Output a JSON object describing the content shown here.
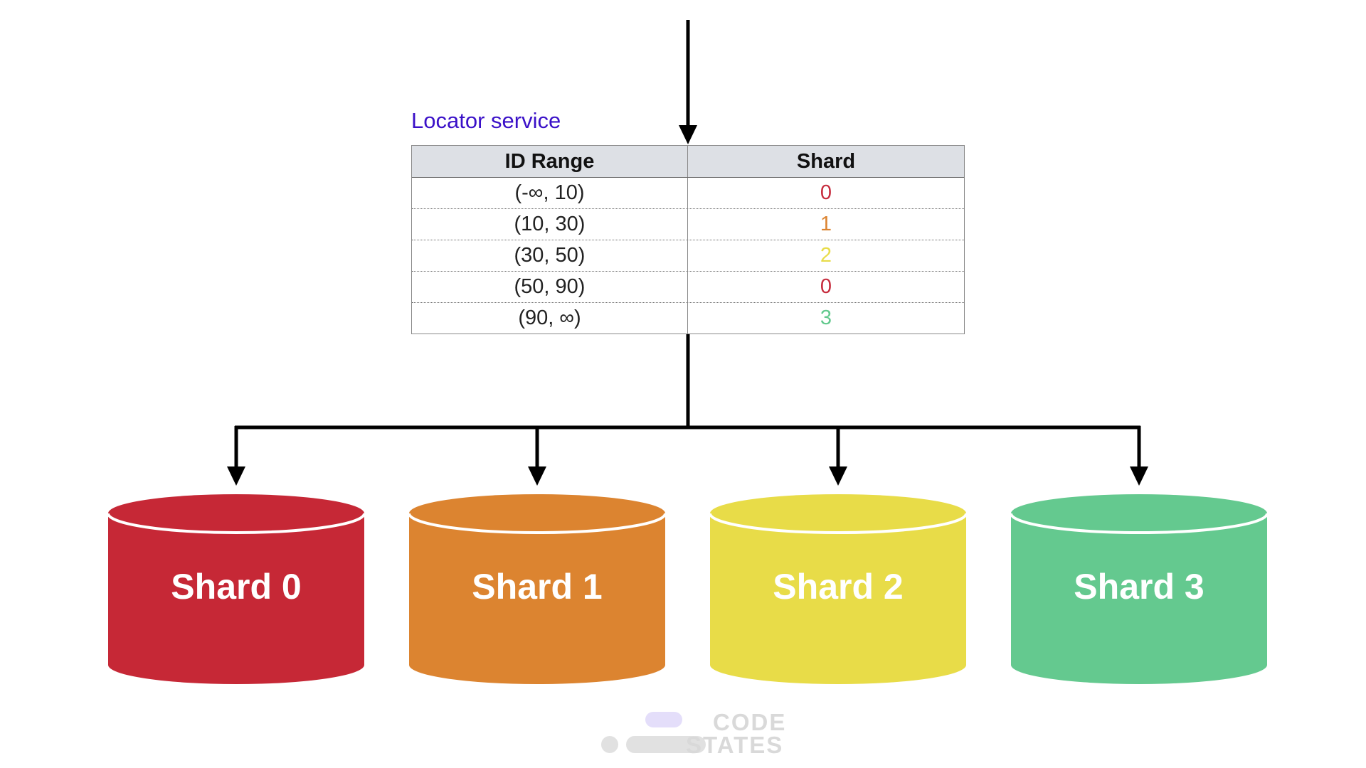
{
  "locator": {
    "title": "Locator service",
    "headers": [
      "ID Range",
      "Shard"
    ],
    "rows": [
      {
        "range": "(-∞, 10)",
        "shard": "0",
        "color": "#c62b3c"
      },
      {
        "range": "(10, 30)",
        "shard": "1",
        "color": "#dc8431"
      },
      {
        "range": "(30, 50)",
        "shard": "2",
        "color": "#e8dc49"
      },
      {
        "range": "(50, 90)",
        "shard": "0",
        "color": "#c62b3c"
      },
      {
        "range": "(90, ∞)",
        "shard": "3",
        "color": "#63c98e"
      }
    ]
  },
  "shards": [
    {
      "label": "Shard 0",
      "color": "#c62836"
    },
    {
      "label": "Shard 1",
      "color": "#dc8430"
    },
    {
      "label": "Shard 2",
      "color": "#e8dc48"
    },
    {
      "label": "Shard 3",
      "color": "#64c98f"
    }
  ],
  "watermark": {
    "line1": "CODE",
    "line2": "STATES",
    "pill_color": "#e4defa",
    "dot_color": "#e1e1e1"
  },
  "colors": {
    "arrow": "#000000",
    "title": "#3a10c8"
  }
}
